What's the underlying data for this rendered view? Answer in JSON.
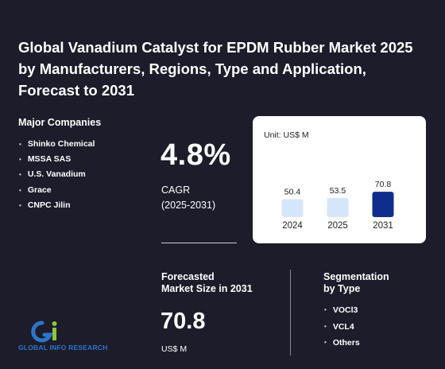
{
  "title": "Global Vanadium Catalyst for EPDM Rubber Market 2025 by Manufacturers, Regions, Type and Application, Forecast to 2031",
  "companies": {
    "heading": "Major Companies",
    "items": [
      "Shinko Chemical",
      "MSSA SAS",
      "U.S. Vanadium",
      "Grace",
      "CNPC Jilin"
    ]
  },
  "cagr": {
    "value": "4.8%",
    "label": "CAGR",
    "period": "(2025-2031)"
  },
  "forecast": {
    "label_line1": "Forecasted",
    "label_line2": "Market Size in 2031",
    "value": "70.8",
    "unit": "US$ M"
  },
  "segmentation": {
    "heading_line1": "Segmentation",
    "heading_line2": "by Type",
    "items": [
      "VOCl3",
      "VCL4",
      "Others"
    ]
  },
  "logo": {
    "text": "GLOBAL INFO RESEARCH"
  },
  "colors": {
    "background": "#1c1c2b",
    "bar_light": "#d6e6fa",
    "bar_dark": "#0e2d8c",
    "logo_blue": "#2f74c9",
    "logo_green": "#8cc63f"
  },
  "chart_data": {
    "type": "bar",
    "unit_label": "Unit: US$ M",
    "categories": [
      "2024",
      "2025",
      "2031"
    ],
    "values": [
      50.4,
      53.5,
      70.8
    ],
    "highlight_index": 2
  }
}
